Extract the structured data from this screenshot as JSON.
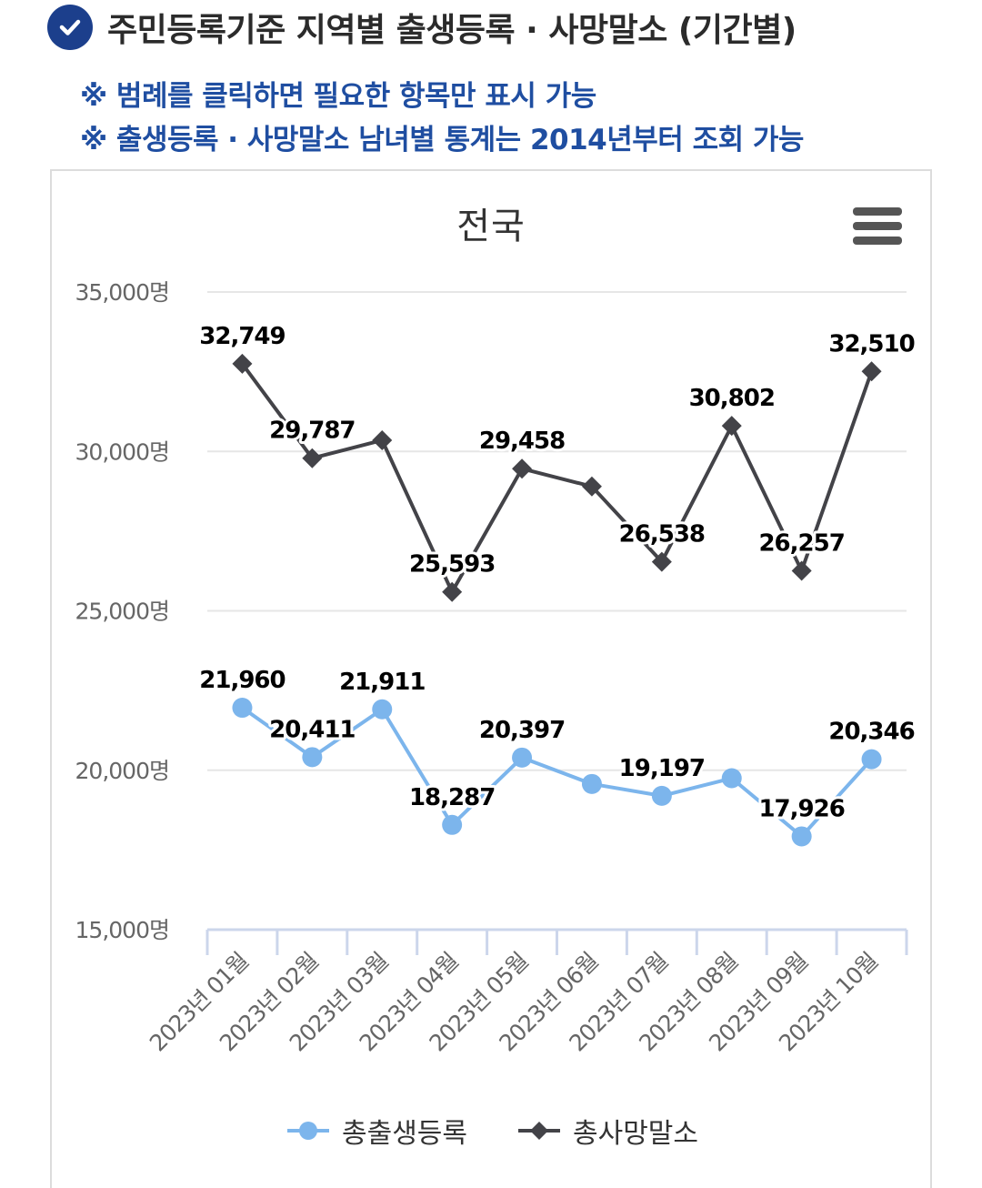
{
  "header": {
    "title": "주민등록기준 지역별 출생등록 · 사망말소 (기간별)",
    "notes": [
      "※ 범례를 클릭하면 필요한 항목만 표시 가능",
      "※ 출생등록 · 사망말소 남녀별 통계는 2014년부터 조회 가능"
    ]
  },
  "icons": {
    "check": "check-circle-icon",
    "menu": "hamburger-menu-icon"
  },
  "colors": {
    "births": "#7cb5ec",
    "deaths": "#434348",
    "accent": "#1c3f8c",
    "note": "#1f4ea1"
  },
  "chart_data": {
    "type": "line",
    "title": "전국",
    "categories": [
      "2023년 01월",
      "2023년 02월",
      "2023년 03월",
      "2023년 04월",
      "2023년 05월",
      "2023년 06월",
      "2023년 07월",
      "2023년 08월",
      "2023년 09월",
      "2023년 10월"
    ],
    "series": [
      {
        "name": "총출생등록",
        "values": [
          21960,
          20411,
          21911,
          18287,
          20397,
          19570,
          19197,
          19750,
          17926,
          20346
        ],
        "labels": [
          "21,960",
          "20,411",
          "21,911",
          "18,287",
          "20,397",
          "",
          "19,197",
          "",
          "17,926",
          "20,346"
        ]
      },
      {
        "name": "총사망말소",
        "values": [
          32749,
          29787,
          30350,
          25593,
          29458,
          28900,
          26538,
          30802,
          26257,
          32510
        ],
        "labels": [
          "32,749",
          "29,787",
          "",
          "25,593",
          "29,458",
          "",
          "26,538",
          "30,802",
          "26,257",
          "32,510"
        ]
      }
    ],
    "y_ticks": [
      "15,000명",
      "20,000명",
      "25,000명",
      "30,000명",
      "35,000명"
    ],
    "ylim": [
      15000,
      35000
    ],
    "grid": true,
    "legend": "bottom"
  }
}
